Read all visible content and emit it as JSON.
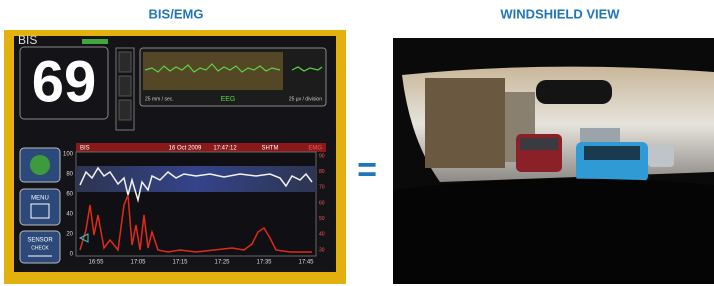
{
  "headings": {
    "left": "BIS/EMG",
    "right": "WINDSHIELD VIEW"
  },
  "equals": "=",
  "monitor": {
    "label": "BIS",
    "bis_value": "69",
    "eeg": {
      "label": "EEG",
      "speed": "25 mm / sec.",
      "scale": "25 µv / division"
    },
    "trend": {
      "left_label": "BIS",
      "date": "16 Oct 2009",
      "time": "17:47:12",
      "mode": "SHTM",
      "right_label": "EMG",
      "yticks": [
        "100",
        "80",
        "60",
        "40",
        "20",
        "0"
      ],
      "y2ticks": [
        "90",
        "80",
        "70",
        "60",
        "50",
        "40",
        "30"
      ],
      "xticks": [
        "16:55",
        "17:05",
        "17:15",
        "17:25",
        "17:35",
        "17:45"
      ]
    },
    "buttons": {
      "menu": "MENU",
      "sensor": "SENSOR",
      "check": "CHECK"
    }
  }
}
